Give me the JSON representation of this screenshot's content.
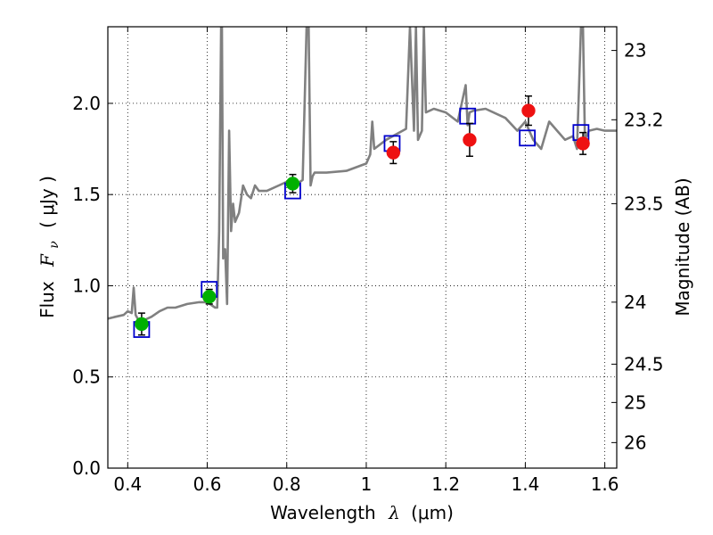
{
  "chart_data": {
    "type": "scatter",
    "xlabel": "Wavelength",
    "xlabel_symbol": "λ",
    "xlabel_unit": "(μm)",
    "ylabel": "Flux",
    "ylabel_symbol": "F",
    "ylabel_sub": "ν",
    "ylabel_unit": "( μJy )",
    "y2label": "Magnitude (AB)",
    "xlim": [
      0.35,
      1.63
    ],
    "ylim": [
      0.0,
      2.42
    ],
    "grid": true,
    "x_ticks": [
      0.4,
      0.6,
      0.8,
      1.0,
      1.2,
      1.4,
      1.6
    ],
    "x_tick_labels": [
      "0.4",
      "0.6",
      "0.8",
      "1",
      "1.2",
      "1.4",
      "1.6"
    ],
    "y_ticks": [
      0.0,
      0.5,
      1.0,
      1.5,
      2.0
    ],
    "y_tick_labels": [
      "0.0",
      "0.5",
      "1.0",
      "1.5",
      "2.0"
    ],
    "y2_ticks": [
      {
        "label": "23",
        "flux": 2.29
      },
      {
        "label": "23.2",
        "flux": 1.91
      },
      {
        "label": "23.5",
        "flux": 1.45
      },
      {
        "label": "24",
        "flux": 0.91
      },
      {
        "label": "24.5",
        "flux": 0.57
      },
      {
        "label": "25",
        "flux": 0.36
      },
      {
        "label": "26",
        "flux": 0.14
      }
    ],
    "colors": {
      "spectrum": "#808080",
      "model": "#0000cc",
      "green": "#00b000",
      "red": "#ee1111",
      "error": "#000000"
    },
    "series": [
      {
        "name": "model spectrum",
        "style": "line",
        "x": [
          0.35,
          0.37,
          0.39,
          0.4,
          0.41,
          0.415,
          0.42,
          0.43,
          0.44,
          0.46,
          0.48,
          0.5,
          0.52,
          0.55,
          0.58,
          0.6,
          0.62,
          0.625,
          0.63,
          0.635,
          0.637,
          0.64,
          0.645,
          0.65,
          0.655,
          0.66,
          0.665,
          0.67,
          0.68,
          0.69,
          0.7,
          0.71,
          0.72,
          0.73,
          0.75,
          0.78,
          0.8,
          0.82,
          0.84,
          0.85,
          0.855,
          0.86,
          0.865,
          0.87,
          0.9,
          0.95,
          1.0,
          1.01,
          1.015,
          1.02,
          1.05,
          1.1,
          1.11,
          1.12,
          1.125,
          1.13,
          1.14,
          1.145,
          1.15,
          1.17,
          1.2,
          1.23,
          1.25,
          1.255,
          1.26,
          1.27,
          1.3,
          1.35,
          1.38,
          1.4,
          1.42,
          1.44,
          1.46,
          1.48,
          1.5,
          1.52,
          1.53,
          1.54,
          1.545,
          1.55,
          1.56,
          1.58,
          1.6,
          1.63
        ],
        "y": [
          0.82,
          0.83,
          0.84,
          0.86,
          0.85,
          0.99,
          0.84,
          0.8,
          0.81,
          0.83,
          0.86,
          0.88,
          0.88,
          0.9,
          0.91,
          0.91,
          0.88,
          0.88,
          1.3,
          2.42,
          2.42,
          1.15,
          1.2,
          0.9,
          1.85,
          1.3,
          1.45,
          1.35,
          1.4,
          1.55,
          1.5,
          1.48,
          1.55,
          1.52,
          1.52,
          1.55,
          1.57,
          1.55,
          1.58,
          2.42,
          2.42,
          1.55,
          1.6,
          1.62,
          1.62,
          1.63,
          1.67,
          1.72,
          1.9,
          1.75,
          1.8,
          1.86,
          2.42,
          1.85,
          2.42,
          1.8,
          1.85,
          2.42,
          1.95,
          1.97,
          1.95,
          1.9,
          2.1,
          1.88,
          1.95,
          1.96,
          1.97,
          1.92,
          1.85,
          1.9,
          1.8,
          1.75,
          1.9,
          1.85,
          1.8,
          1.82,
          1.75,
          2.42,
          2.42,
          1.8,
          1.85,
          1.86,
          1.85,
          1.85
        ]
      },
      {
        "name": "model photometry",
        "style": "open-square",
        "x": [
          0.435,
          0.605,
          0.815,
          1.065,
          1.255,
          1.405,
          1.54
        ],
        "y": [
          0.76,
          0.98,
          1.52,
          1.78,
          1.93,
          1.81,
          1.84
        ]
      },
      {
        "name": "observed (green)",
        "style": "filled-circle",
        "x": [
          0.435,
          0.605,
          0.815
        ],
        "y": [
          0.79,
          0.94,
          1.56
        ],
        "yerr": [
          0.06,
          0.04,
          0.05
        ]
      },
      {
        "name": "observed (red)",
        "style": "filled-circle",
        "x": [
          1.068,
          1.26,
          1.408,
          1.545
        ],
        "y": [
          1.73,
          1.8,
          1.96,
          1.78
        ],
        "yerr": [
          0.06,
          0.09,
          0.08,
          0.06
        ]
      }
    ]
  }
}
